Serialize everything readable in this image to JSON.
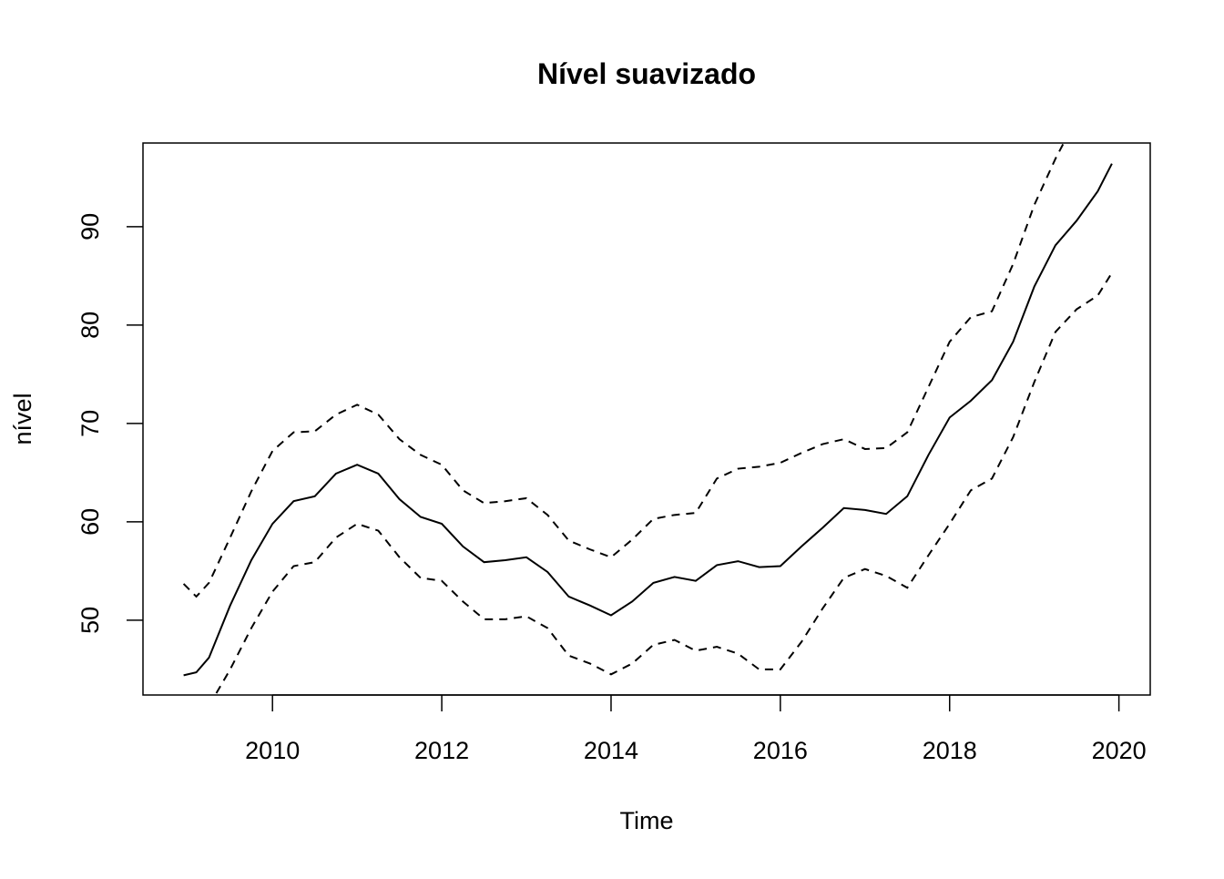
{
  "chart_data": {
    "type": "line",
    "title": "Nível suavizado",
    "x_label": "Time",
    "y_label": "nível",
    "x": [
      2008.95,
      2009.1,
      2009.25,
      2009.5,
      2009.75,
      2010,
      2010.25,
      2010.5,
      2010.75,
      2011,
      2011.25,
      2011.5,
      2011.75,
      2012,
      2012.25,
      2012.5,
      2012.75,
      2013,
      2013.25,
      2013.5,
      2013.75,
      2014,
      2014.25,
      2014.5,
      2014.75,
      2015,
      2015.25,
      2015.5,
      2015.75,
      2016,
      2016.25,
      2016.5,
      2016.75,
      2017,
      2017.25,
      2017.5,
      2017.75,
      2018,
      2018.25,
      2018.5,
      2018.75,
      2019,
      2019.25,
      2019.5,
      2019.75,
      2019.917
    ],
    "series": [
      {
        "color": "#000000",
        "dashed": false,
        "values": [
          44.4,
          44.7,
          46.2,
          51.5,
          56.1,
          59.8,
          62.1,
          62.6,
          64.9,
          65.8,
          64.9,
          62.3,
          60.5,
          59.8,
          57.5,
          55.9,
          56.1,
          56.4,
          54.9,
          52.4,
          51.5,
          50.5,
          51.9,
          53.8,
          54.4,
          54.0,
          55.6,
          56.0,
          55.4,
          55.5,
          57.5,
          59.4,
          61.4,
          61.2,
          60.8,
          62.6,
          66.8,
          70.6,
          72.3,
          74.4,
          78.3,
          83.9,
          88.1,
          90.6,
          93.6,
          96.4
        ]
      },
      {
        "color": "#000000",
        "dashed": true,
        "values": [
          53.7,
          52.4,
          53.8,
          58.4,
          63.1,
          67.2,
          69.1,
          69.2,
          70.9,
          71.9,
          70.9,
          68.4,
          66.8,
          65.8,
          63.2,
          61.9,
          62.1,
          62.4,
          60.7,
          58.1,
          57.2,
          56.4,
          58.2,
          60.3,
          60.7,
          60.9,
          64.4,
          65.4,
          65.6,
          66.0,
          67.0,
          67.9,
          68.4,
          67.4,
          67.5,
          69.1,
          73.7,
          78.3,
          80.8,
          81.4,
          86.2,
          92.2,
          96.9,
          101.0,
          null,
          null
        ]
      },
      {
        "color": "#000000",
        "dashed": true,
        "values": [
          null,
          null,
          41.3,
          45.0,
          49.2,
          52.9,
          55.5,
          55.9,
          58.4,
          59.8,
          59.1,
          56.4,
          54.3,
          54.0,
          51.9,
          50.1,
          50.1,
          50.4,
          49.2,
          46.4,
          45.6,
          44.5,
          45.6,
          47.5,
          48.0,
          46.9,
          47.3,
          46.6,
          45.0,
          45.0,
          47.8,
          51.2,
          54.3,
          55.2,
          54.5,
          53.3,
          56.6,
          59.8,
          63.2,
          64.4,
          68.6,
          74.2,
          79.3,
          81.6,
          83.0,
          85.3
        ]
      }
    ],
    "xlim": [
      2008.47,
      2020.37
    ],
    "xticks": [
      2010,
      2012,
      2014,
      2016,
      2018,
      2020
    ],
    "ylim": [
      42.4,
      98.5
    ],
    "yticks": [
      50,
      60,
      70,
      80,
      90
    ]
  }
}
